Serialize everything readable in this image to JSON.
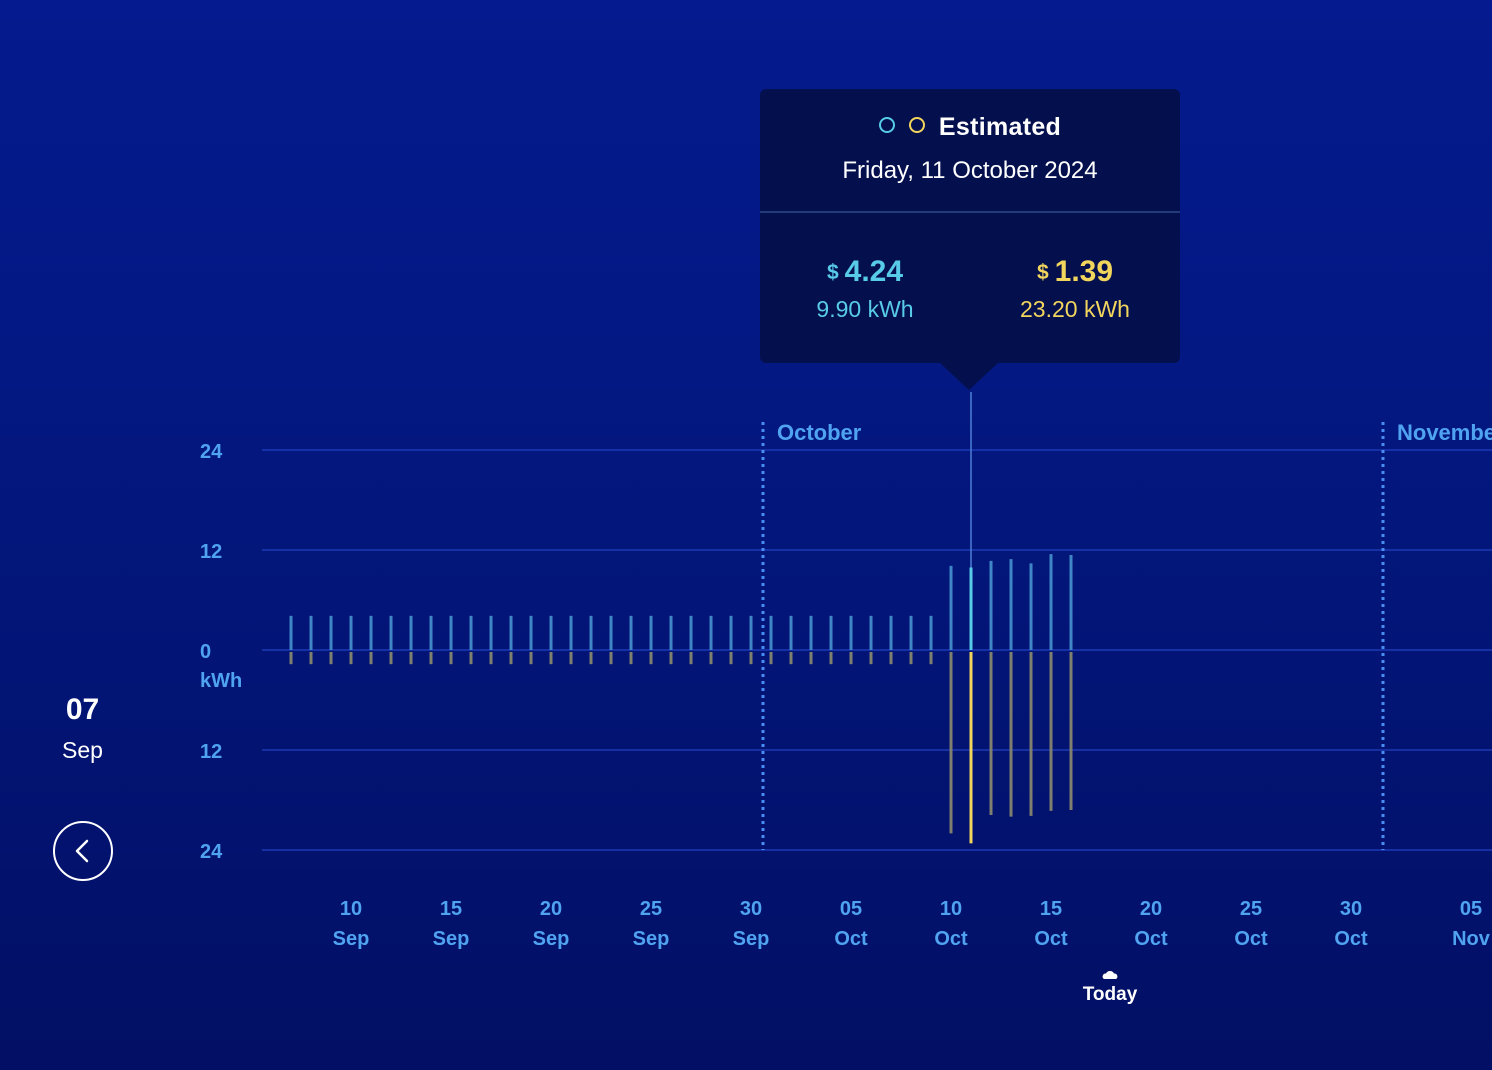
{
  "tooltip": {
    "legend_label": "Estimated",
    "date": "Friday, 11 October 2024",
    "currency": "$",
    "import": {
      "cost": "4.24",
      "kwh": "9.90 kWh"
    },
    "export": {
      "cost": "1.39",
      "kwh": "23.20 kWh"
    }
  },
  "start": {
    "day": "07",
    "month": "Sep"
  },
  "today_label": "Today",
  "icons": {
    "back": "chevron-left-icon",
    "today": "cloud-icon",
    "import_dot": "circle-outline-icon",
    "export_dot": "circle-outline-icon"
  },
  "colors": {
    "import": "#3f86c6",
    "export": "#7f7f6f",
    "import_selected": "#58cbe8",
    "export_selected": "#f2d55c",
    "axis_text": "#4fa3f0"
  },
  "chart_data": {
    "type": "bar",
    "ylabel": "kWh",
    "y_ticks": [
      "24",
      "12",
      "0",
      "12",
      "24"
    ],
    "ylim": [
      -24,
      24
    ],
    "grid": true,
    "months": [
      {
        "label": "October",
        "date": "2024-10-01"
      },
      {
        "label": "Novembe",
        "date": "2024-11-01"
      }
    ],
    "x_ticks": [
      {
        "day": "10",
        "month": "Sep",
        "date": "2024-09-10"
      },
      {
        "day": "15",
        "month": "Sep",
        "date": "2024-09-15"
      },
      {
        "day": "20",
        "month": "Sep",
        "date": "2024-09-20"
      },
      {
        "day": "25",
        "month": "Sep",
        "date": "2024-09-25"
      },
      {
        "day": "30",
        "month": "Sep",
        "date": "2024-09-30"
      },
      {
        "day": "05",
        "month": "Oct",
        "date": "2024-10-05"
      },
      {
        "day": "10",
        "month": "Oct",
        "date": "2024-10-10"
      },
      {
        "day": "15",
        "month": "Oct",
        "date": "2024-10-15"
      },
      {
        "day": "20",
        "month": "Oct",
        "date": "2024-10-20"
      },
      {
        "day": "25",
        "month": "Oct",
        "date": "2024-10-25"
      },
      {
        "day": "30",
        "month": "Oct",
        "date": "2024-10-30"
      },
      {
        "day": "05",
        "month": "Nov",
        "date": "2024-11-05"
      }
    ],
    "selected_date": "2024-10-11",
    "today_date": "2024-10-18",
    "series": [
      {
        "name": "Import",
        "values": [
          4.1,
          4.1,
          4.1,
          4.1,
          4.1,
          4.1,
          4.1,
          4.1,
          4.1,
          4.1,
          4.1,
          4.1,
          4.1,
          4.1,
          4.1,
          4.1,
          4.1,
          4.1,
          4.1,
          4.1,
          4.1,
          4.1,
          4.1,
          4.1,
          4.1,
          4.1,
          4.1,
          4.1,
          4.1,
          4.1,
          4.1,
          4.1,
          4.1,
          10.1,
          9.9,
          10.7,
          10.9,
          10.4,
          11.5,
          11.4
        ]
      },
      {
        "name": "Export",
        "values": [
          1.7,
          1.7,
          1.7,
          1.7,
          1.7,
          1.7,
          1.7,
          1.7,
          1.7,
          1.7,
          1.7,
          1.7,
          1.7,
          1.7,
          1.7,
          1.7,
          1.7,
          1.7,
          1.7,
          1.7,
          1.7,
          1.7,
          1.7,
          1.7,
          1.7,
          1.7,
          1.7,
          1.7,
          1.7,
          1.7,
          1.7,
          1.7,
          1.7,
          22.0,
          23.2,
          19.8,
          20.0,
          19.9,
          19.3,
          19.2
        ]
      }
    ],
    "dates": [
      "2024-09-07",
      "2024-09-08",
      "2024-09-09",
      "2024-09-10",
      "2024-09-11",
      "2024-09-12",
      "2024-09-13",
      "2024-09-14",
      "2024-09-15",
      "2024-09-16",
      "2024-09-17",
      "2024-09-18",
      "2024-09-19",
      "2024-09-20",
      "2024-09-21",
      "2024-09-22",
      "2024-09-23",
      "2024-09-24",
      "2024-09-25",
      "2024-09-26",
      "2024-09-27",
      "2024-09-28",
      "2024-09-29",
      "2024-09-30",
      "2024-10-01",
      "2024-10-02",
      "2024-10-03",
      "2024-10-04",
      "2024-10-05",
      "2024-10-06",
      "2024-10-07",
      "2024-10-08",
      "2024-10-09",
      "2024-10-10",
      "2024-10-11",
      "2024-10-12",
      "2024-10-13",
      "2024-10-14",
      "2024-10-15",
      "2024-10-16"
    ]
  }
}
